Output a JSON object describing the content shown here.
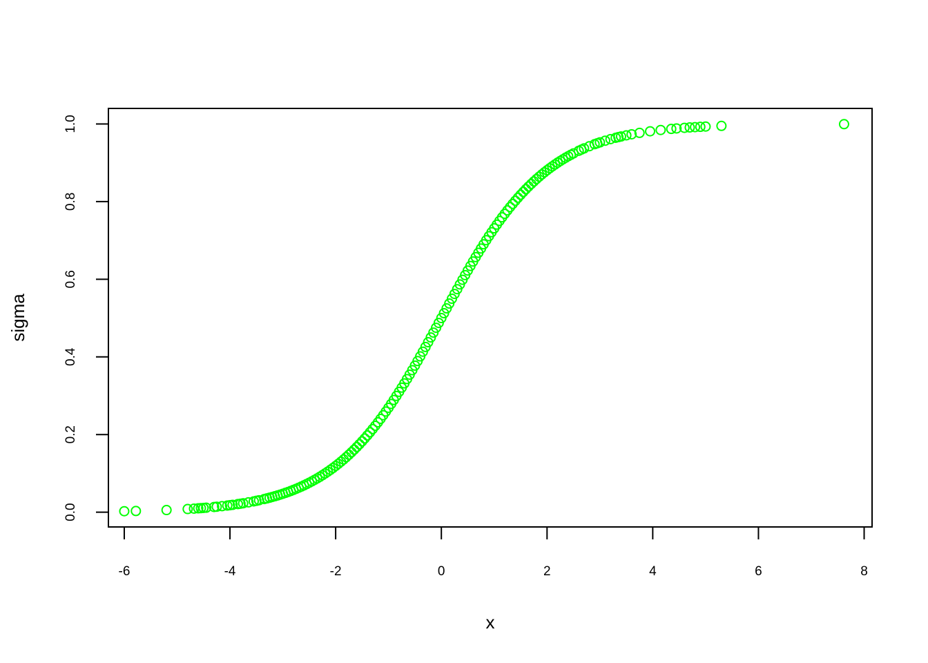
{
  "chart_data": {
    "type": "scatter",
    "title": "",
    "xlabel": "x",
    "ylabel": "sigma",
    "xlim": [
      -6.3,
      8.15
    ],
    "ylim": [
      -0.038,
      1.04
    ],
    "x_ticks": [
      "-6",
      "-4",
      "-2",
      "0",
      "2",
      "4",
      "6",
      "8"
    ],
    "x_tick_values": [
      -6,
      -4,
      -2,
      0,
      2,
      4,
      6,
      8
    ],
    "y_ticks": [
      "0.0",
      "0.2",
      "0.4",
      "0.6",
      "0.8",
      "1.0"
    ],
    "y_tick_values": [
      0.0,
      0.2,
      0.4,
      0.6,
      0.8,
      1.0
    ],
    "grid": false,
    "legend": "none",
    "marker": "open-circle",
    "point_color": "#00ff00",
    "series": [
      {
        "function": "logistic",
        "x": [
          -6.0,
          -5.78,
          -5.2,
          -4.8,
          -4.68,
          -4.6,
          -4.55,
          -4.5,
          -4.45,
          -4.3,
          -4.25,
          -4.15,
          -4.05,
          -4.0,
          -3.95,
          -3.85,
          -3.8,
          -3.75,
          -3.65,
          -3.55,
          -3.5,
          -3.45,
          -3.35,
          -3.3,
          -3.25,
          -3.2,
          -3.15,
          -3.1,
          -3.05,
          -3.0,
          -2.95,
          -2.9,
          -2.85,
          -2.8,
          -2.75,
          -2.7,
          -2.65,
          -2.6,
          -2.55,
          -2.5,
          -2.45,
          -2.4,
          -2.35,
          -2.3,
          -2.25,
          -2.2,
          -2.15,
          -2.1,
          -2.05,
          -2.0,
          -1.95,
          -1.9,
          -1.85,
          -1.8,
          -1.75,
          -1.7,
          -1.65,
          -1.6,
          -1.55,
          -1.5,
          -1.45,
          -1.4,
          -1.35,
          -1.3,
          -1.25,
          -1.2,
          -1.15,
          -1.1,
          -1.05,
          -1.0,
          -0.95,
          -0.9,
          -0.85,
          -0.8,
          -0.75,
          -0.7,
          -0.65,
          -0.6,
          -0.55,
          -0.5,
          -0.45,
          -0.4,
          -0.35,
          -0.3,
          -0.25,
          -0.2,
          -0.15,
          -0.1,
          -0.05,
          0.0,
          0.05,
          0.1,
          0.15,
          0.2,
          0.25,
          0.3,
          0.35,
          0.4,
          0.45,
          0.5,
          0.55,
          0.6,
          0.65,
          0.7,
          0.75,
          0.8,
          0.85,
          0.9,
          0.95,
          1.0,
          1.05,
          1.1,
          1.15,
          1.2,
          1.25,
          1.3,
          1.35,
          1.4,
          1.45,
          1.5,
          1.55,
          1.6,
          1.65,
          1.7,
          1.75,
          1.8,
          1.85,
          1.9,
          1.95,
          2.0,
          2.05,
          2.1,
          2.15,
          2.2,
          2.25,
          2.3,
          2.35,
          2.4,
          2.45,
          2.5,
          2.6,
          2.65,
          2.7,
          2.8,
          2.9,
          2.95,
          3.0,
          3.1,
          3.2,
          3.3,
          3.35,
          3.4,
          3.5,
          3.6,
          3.75,
          3.95,
          4.15,
          4.35,
          4.45,
          4.6,
          4.7,
          4.8,
          4.9,
          5.0,
          5.3,
          7.62
        ]
      }
    ]
  }
}
